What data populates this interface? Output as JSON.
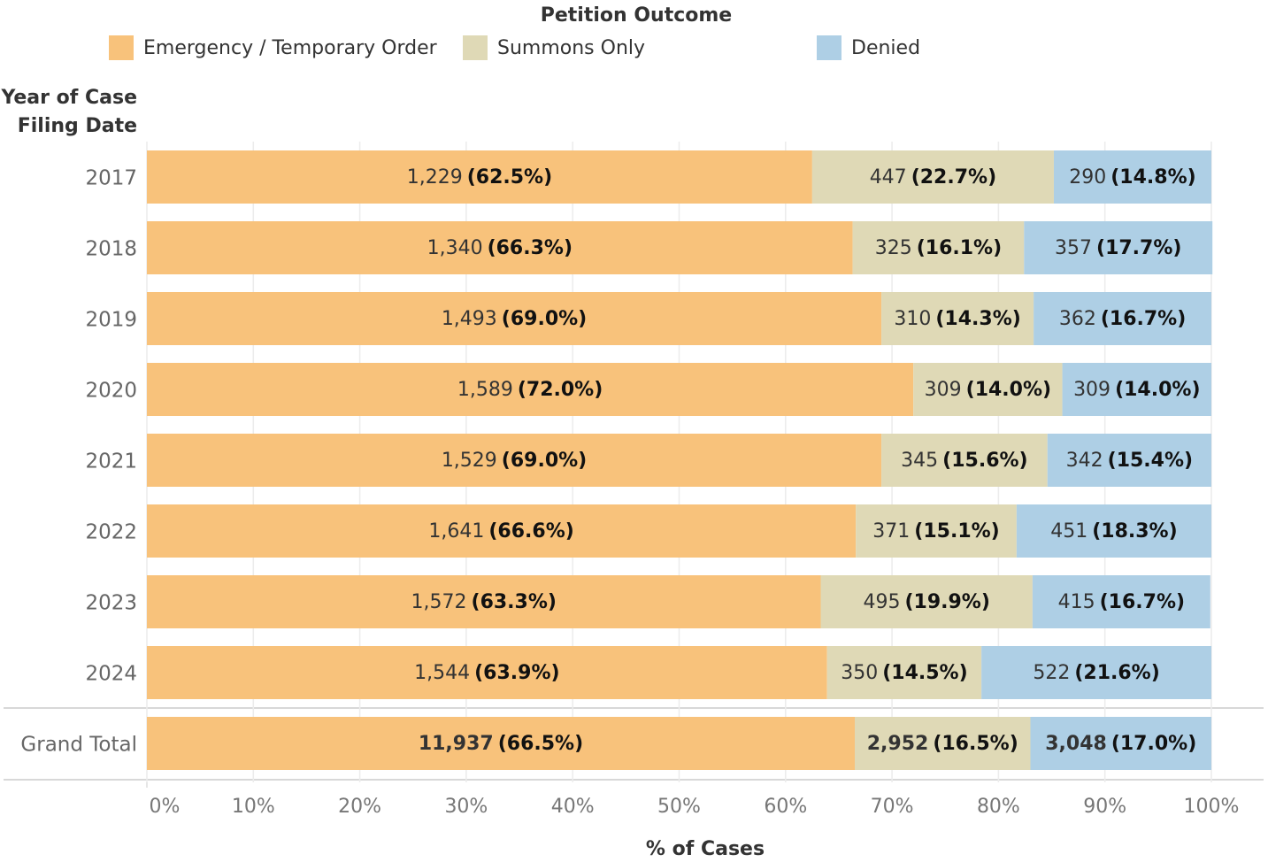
{
  "chart_data": {
    "type": "stacked_bar_horizontal_percent",
    "legend_title": "Petition Outcome",
    "y_label": [
      "Year of Case",
      "Filing Date"
    ],
    "x_label": "% of Cases",
    "categories": [
      "2017",
      "2018",
      "2019",
      "2020",
      "2021",
      "2022",
      "2023",
      "2024",
      "Grand Total"
    ],
    "series": [
      {
        "name": "Emergency / Temporary Order",
        "color": "#f8c27b",
        "values": [
          62.5,
          66.3,
          69.0,
          72.0,
          69.0,
          66.6,
          63.3,
          63.9,
          66.5
        ],
        "value_labels": [
          "(62.5%)",
          "(66.3%)",
          "(69.0%)",
          "(72.0%)",
          "(69.0%)",
          "(66.6%)",
          "(63.3%)",
          "(63.9%)",
          "(66.5%)"
        ],
        "count_labels": [
          "1,229",
          "1,340",
          "1,493",
          "1,589",
          "1,529",
          "1,641",
          "1,572",
          "1,544",
          "11,937"
        ]
      },
      {
        "name": "Summons Only",
        "color": "#dfd9b6",
        "values": [
          22.7,
          16.1,
          14.3,
          14.0,
          15.6,
          15.1,
          19.9,
          14.5,
          16.5
        ],
        "value_labels": [
          "(22.7%)",
          "(16.1%)",
          "(14.3%)",
          "(14.0%)",
          "(15.6%)",
          "(15.1%)",
          "(19.9%)",
          "(14.5%)",
          "(16.5%)"
        ],
        "count_labels": [
          "447",
          "325",
          "310",
          "309",
          "345",
          "371",
          "495",
          "350",
          "2,952"
        ]
      },
      {
        "name": "Denied",
        "color": "#aecfe5",
        "values": [
          14.8,
          17.7,
          16.7,
          14.0,
          15.4,
          18.3,
          16.7,
          21.6,
          17.0
        ],
        "value_labels": [
          "(14.8%)",
          "(17.7%)",
          "(16.7%)",
          "(14.0%)",
          "(15.4%)",
          "(18.3%)",
          "(16.7%)",
          "(21.6%)",
          "(17.0%)"
        ],
        "count_labels": [
          "290",
          "357",
          "362",
          "309",
          "342",
          "451",
          "415",
          "522",
          "3,048"
        ]
      }
    ],
    "xlim": [
      0,
      100
    ],
    "xticks": [
      {
        "value": 0,
        "label": "0%"
      },
      {
        "value": 10,
        "label": "10%"
      },
      {
        "value": 20,
        "label": "20%"
      },
      {
        "value": 30,
        "label": "30%"
      },
      {
        "value": 40,
        "label": "40%"
      },
      {
        "value": 50,
        "label": "50%"
      },
      {
        "value": 60,
        "label": "60%"
      },
      {
        "value": 70,
        "label": "70%"
      },
      {
        "value": 80,
        "label": "80%"
      },
      {
        "value": 90,
        "label": "90%"
      },
      {
        "value": 100,
        "label": "100%"
      }
    ],
    "grid": true
  }
}
